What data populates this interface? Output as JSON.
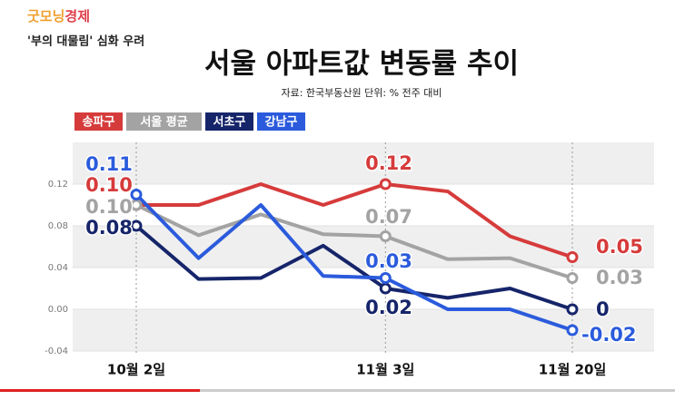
{
  "logo": [
    "굿모닝",
    "경제"
  ],
  "headline": "'부의 대물림' 심화 우려",
  "chart_data": {
    "type": "line",
    "title": "서울 아파트값 변동률 추이",
    "subtitle": "자료: 한국부동산원  단위: %    전주 대비",
    "categories": [
      "10월 2일",
      null,
      null,
      null,
      "11월 3일",
      null,
      null,
      "11월 20일"
    ],
    "series": [
      {
        "name": "송파구",
        "color": "#d63b3b",
        "values": [
          0.1,
          0.1,
          0.12,
          0.1,
          0.12,
          0.113,
          0.07,
          0.05
        ],
        "value_labels": [
          "0.10",
          null,
          null,
          null,
          "0.12",
          null,
          null,
          "0.05"
        ]
      },
      {
        "name": "서울 평균",
        "color": "#a3a3a3",
        "values": [
          0.1,
          0.071,
          0.091,
          0.072,
          0.07,
          0.048,
          0.049,
          0.03
        ],
        "value_labels": [
          "0.10",
          null,
          null,
          null,
          "0.07",
          null,
          null,
          "0.03"
        ]
      },
      {
        "name": "서초구",
        "color": "#16256a",
        "values": [
          0.08,
          0.029,
          0.03,
          0.061,
          0.02,
          0.011,
          0.02,
          0
        ],
        "value_labels": [
          "0.08",
          null,
          null,
          null,
          "0.02",
          null,
          null,
          "0"
        ]
      },
      {
        "name": "강남구",
        "color": "#2b5bdc",
        "values": [
          0.11,
          0.049,
          0.1,
          0.032,
          0.03,
          0,
          0,
          -0.02
        ],
        "value_labels": [
          "0.11",
          null,
          null,
          null,
          "0.03",
          null,
          null,
          "-0.02"
        ]
      }
    ],
    "ylim": [
      -0.04,
      0.16
    ],
    "yticks": [
      -0.04,
      {
        "value": 0,
        "label": "0.00"
      },
      0.04,
      0.08,
      0.12
    ]
  }
}
